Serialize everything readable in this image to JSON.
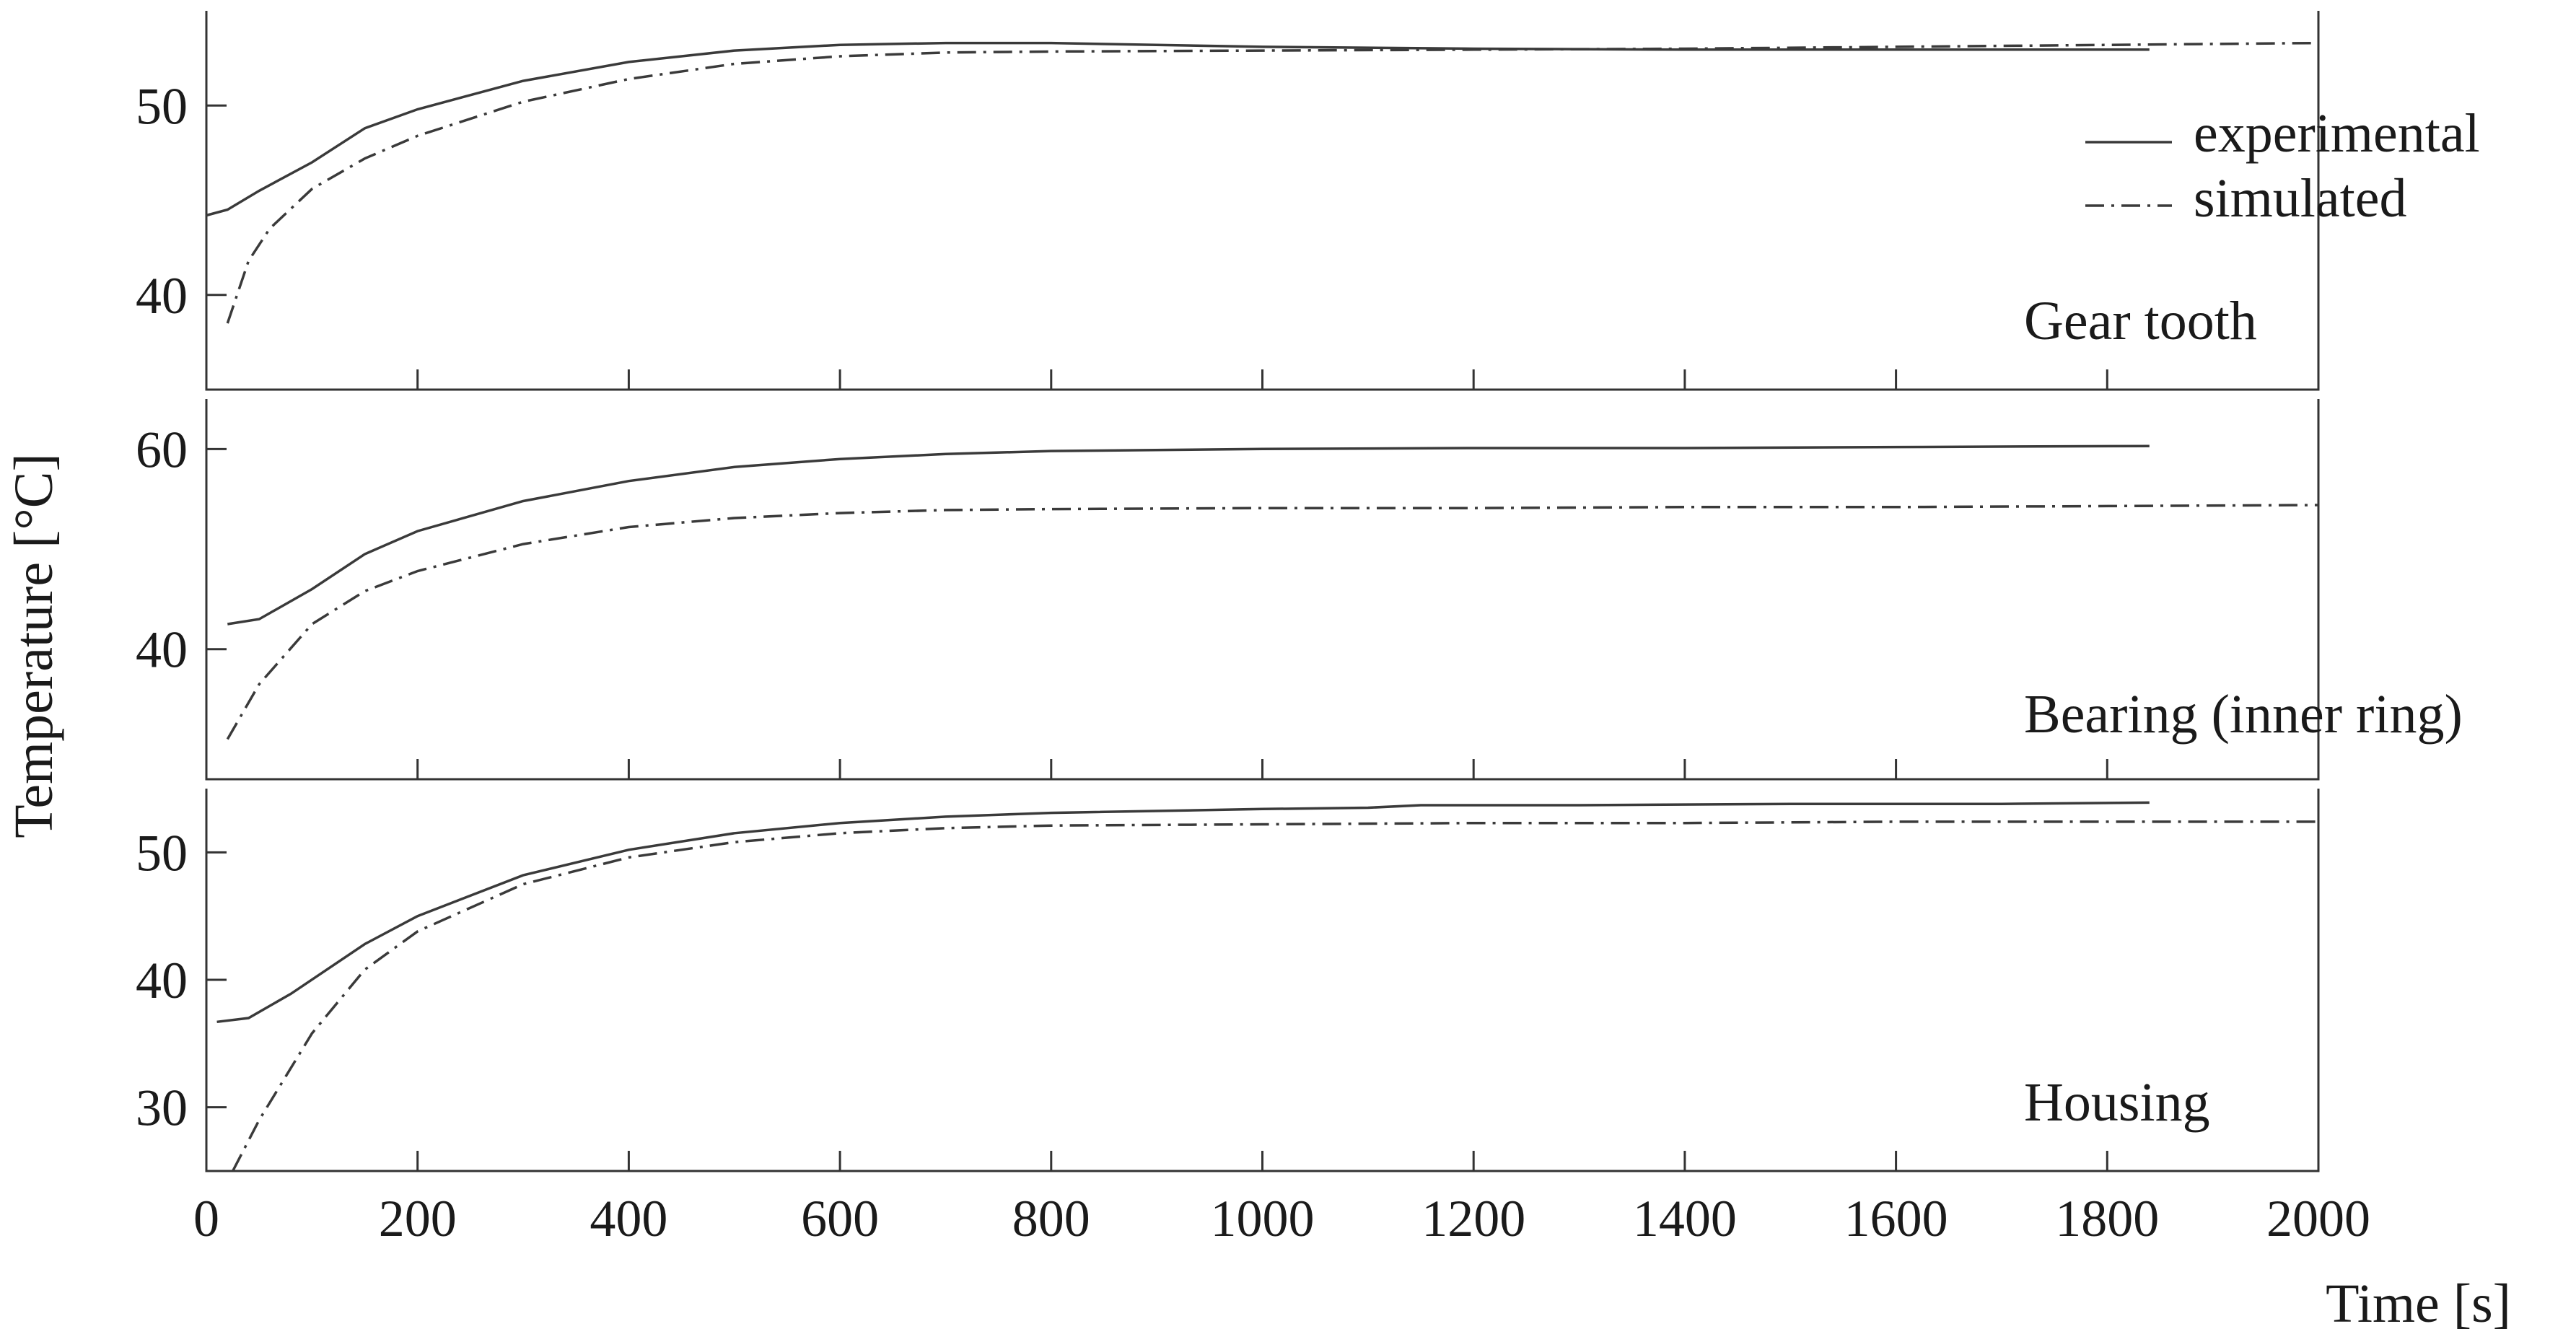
{
  "chart_data": {
    "type": "line",
    "ylabel": "Temperature [°C]",
    "xlabel": "Time [s]",
    "xlim": [
      0,
      2000
    ],
    "xticks": [
      0,
      200,
      400,
      600,
      800,
      1000,
      1200,
      1400,
      1600,
      1800,
      2000
    ],
    "legend": {
      "placement": "top-right",
      "entries": [
        {
          "label": "experimental",
          "style": "solid"
        },
        {
          "label": "simulated",
          "style": "dash-dot"
        }
      ]
    },
    "panels": [
      {
        "label": "Gear tooth",
        "ylim": [
          35,
          55
        ],
        "yticks": [
          40,
          50
        ],
        "series": [
          {
            "legend": "experimental",
            "style": "solid",
            "x": [
              0,
              20,
              50,
              100,
              150,
              200,
              300,
              400,
              500,
              600,
              700,
              800,
              1000,
              1200,
              1400,
              1600,
              1840
            ],
            "y": [
              44.2,
              44.5,
              45.5,
              47,
              48.8,
              49.8,
              51.3,
              52.3,
              52.9,
              53.2,
              53.3,
              53.3,
              53.1,
              53,
              52.95,
              52.95,
              52.95
            ]
          },
          {
            "legend": "simulated",
            "style": "dash-dot",
            "x": [
              20,
              40,
              60,
              100,
              150,
              200,
              300,
              400,
              500,
              600,
              700,
              800,
              1000,
              1200,
              1400,
              1600,
              2000
            ],
            "y": [
              38.5,
              41.8,
              43.5,
              45.6,
              47.2,
              48.4,
              50.2,
              51.4,
              52.2,
              52.6,
              52.8,
              52.85,
              52.9,
              52.95,
              53.0,
              53.1,
              53.3
            ]
          }
        ]
      },
      {
        "label": "Bearing (inner ring)",
        "ylim": [
          27,
          65
        ],
        "yticks": [
          40,
          60
        ],
        "series": [
          {
            "legend": "experimental",
            "style": "solid",
            "x": [
              20,
              50,
              100,
              150,
              200,
              300,
              400,
              500,
              600,
              700,
              800,
              1000,
              1200,
              1400,
              1600,
              1840
            ],
            "y": [
              42.5,
              43,
              46,
              49.5,
              51.8,
              54.8,
              56.8,
              58.2,
              59,
              59.5,
              59.8,
              60,
              60.1,
              60.1,
              60.2,
              60.3
            ]
          },
          {
            "legend": "simulated",
            "style": "dash-dot",
            "x": [
              20,
              50,
              100,
              150,
              200,
              300,
              400,
              500,
              600,
              700,
              800,
              1000,
              1200,
              1400,
              1600,
              2000
            ],
            "y": [
              31,
              36.5,
              42.5,
              45.8,
              47.8,
              50.5,
              52.2,
              53.1,
              53.6,
              53.9,
              54.0,
              54.1,
              54.1,
              54.2,
              54.2,
              54.4
            ]
          }
        ]
      },
      {
        "label": "Housing",
        "ylim": [
          25,
          55
        ],
        "yticks": [
          30,
          40,
          50
        ],
        "series": [
          {
            "legend": "experimental",
            "style": "solid",
            "x": [
              10,
              40,
              80,
              150,
              200,
              300,
              400,
              500,
              600,
              700,
              800,
              1000,
              1100,
              1150,
              1300,
              1500,
              1700,
              1840
            ],
            "y": [
              36.7,
              37,
              38.9,
              42.8,
              45.0,
              48.2,
              50.2,
              51.5,
              52.3,
              52.8,
              53.1,
              53.4,
              53.5,
              53.7,
              53.7,
              53.8,
              53.8,
              53.9
            ]
          },
          {
            "legend": "simulated",
            "style": "dash-dot",
            "x": [
              25,
              50,
              100,
              150,
              200,
              300,
              400,
              500,
              600,
              700,
              800,
              1000,
              1200,
              1400,
              1600,
              1800,
              2000
            ],
            "y": [
              25,
              29,
              35.8,
              40.8,
              43.8,
              47.5,
              49.6,
              50.8,
              51.5,
              51.9,
              52.1,
              52.2,
              52.3,
              52.3,
              52.4,
              52.4,
              52.4
            ]
          }
        ]
      }
    ]
  }
}
